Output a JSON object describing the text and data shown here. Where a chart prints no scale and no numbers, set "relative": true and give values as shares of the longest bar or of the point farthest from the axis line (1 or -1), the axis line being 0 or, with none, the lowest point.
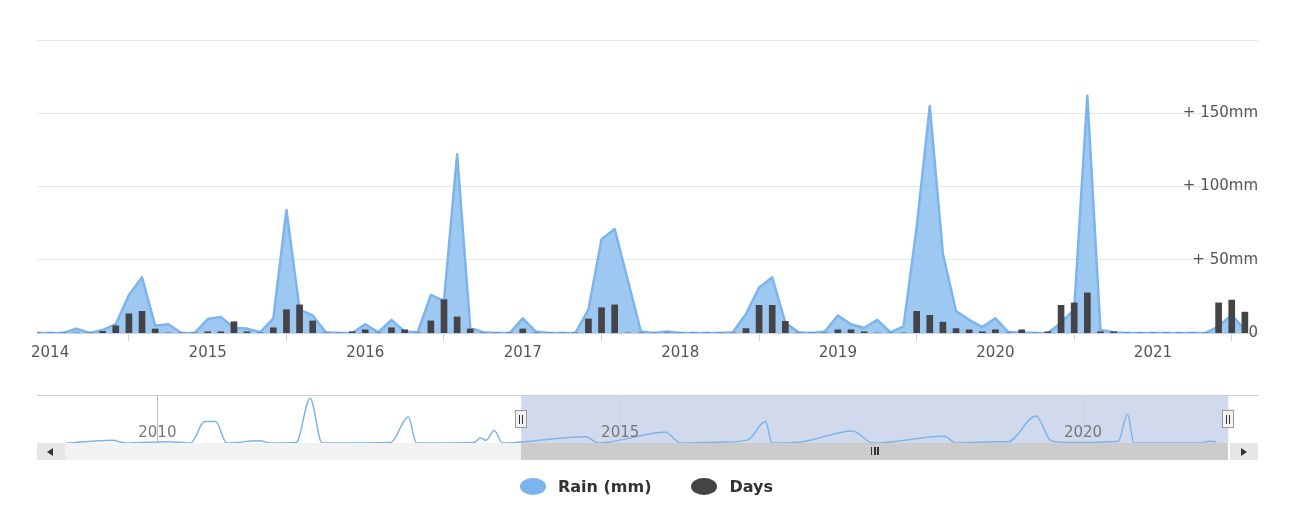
{
  "chart_data": [
    {
      "type": "area",
      "x": [
        "2013-12",
        "2014-01",
        "2014-02",
        "2014-03",
        "2014-04",
        "2014-05",
        "2014-06",
        "2014-07",
        "2014-08",
        "2014-09",
        "2014-10",
        "2014-11",
        "2014-12",
        "2015-01",
        "2015-02",
        "2015-03",
        "2015-04",
        "2015-05",
        "2015-06",
        "2015-07",
        "2015-08",
        "2015-09",
        "2015-10",
        "2015-11",
        "2015-12",
        "2016-01",
        "2016-02",
        "2016-03",
        "2016-04",
        "2016-05",
        "2016-06",
        "2016-07",
        "2016-08",
        "2016-09",
        "2016-10",
        "2016-11",
        "2016-12",
        "2017-01",
        "2017-02",
        "2017-03",
        "2017-04",
        "2017-05",
        "2017-06",
        "2017-07",
        "2017-08",
        "2017-09",
        "2017-10",
        "2017-11",
        "2017-12",
        "2018-01",
        "2018-02",
        "2018-03",
        "2018-04",
        "2018-05",
        "2018-06",
        "2018-07",
        "2018-08",
        "2018-09",
        "2018-10",
        "2018-11",
        "2018-12",
        "2019-01",
        "2019-02",
        "2019-03",
        "2019-04",
        "2019-05",
        "2019-06",
        "2019-07",
        "2019-08",
        "2019-09",
        "2019-10",
        "2019-11",
        "2019-12",
        "2020-01",
        "2020-02",
        "2020-03",
        "2020-04",
        "2020-05",
        "2020-06",
        "2020-07",
        "2020-08",
        "2020-09",
        "2020-10",
        "2020-11",
        "2020-12",
        "2021-01",
        "2021-02",
        "2021-03",
        "2021-04",
        "2021-05",
        "2021-06",
        "2021-07",
        "2021-08"
      ],
      "series": [
        {
          "name": "Rain (mm)",
          "color": "#7cb5ec",
          "values": [
            0,
            0,
            0,
            3,
            0,
            2,
            6,
            26,
            38,
            5,
            6,
            0,
            0,
            9.5,
            11,
            3.4,
            3,
            0.5,
            10,
            84,
            16,
            12,
            0.5,
            0,
            0,
            6,
            0.5,
            9,
            1,
            0.5,
            26,
            22,
            122,
            3.4,
            0.5,
            0,
            0,
            10,
            1,
            0,
            0,
            0,
            16,
            64,
            71,
            36,
            1,
            0,
            1,
            0,
            0,
            0,
            0,
            0.5,
            13,
            31,
            38,
            7,
            0.5,
            0,
            1,
            12,
            6,
            3.4,
            9,
            0.5,
            4.5,
            72,
            155,
            54,
            15,
            9,
            4,
            10,
            0.5,
            0.5,
            0,
            0,
            7,
            16,
            162,
            2,
            0.5,
            0,
            0,
            0,
            0,
            0,
            0,
            0,
            4.5,
            12.5,
            2
          ]
        }
      ],
      "xlim": [
        "2013-12",
        "2021-09"
      ],
      "xticks": [
        "2014",
        "2015",
        "2016",
        "2017",
        "2018",
        "2019",
        "2020",
        "2021"
      ],
      "ylim": [
        0,
        200
      ],
      "yticks": [
        {
          "value": 0,
          "label": "0"
        },
        {
          "value": 50,
          "label": "+ 50mm"
        },
        {
          "value": 100,
          "label": "+ 100mm"
        },
        {
          "value": 150,
          "label": "+ 150mm"
        },
        {
          "value": 200,
          "label": null
        }
      ],
      "grid": "y",
      "legend": "bottom"
    },
    {
      "type": "bar",
      "relative": true,
      "x": [
        "2013-12",
        "2014-01",
        "2014-02",
        "2014-03",
        "2014-04",
        "2014-05",
        "2014-06",
        "2014-07",
        "2014-08",
        "2014-09",
        "2014-10",
        "2014-11",
        "2014-12",
        "2015-01",
        "2015-02",
        "2015-03",
        "2015-04",
        "2015-05",
        "2015-06",
        "2015-07",
        "2015-08",
        "2015-09",
        "2015-10",
        "2015-11",
        "2015-12",
        "2016-01",
        "2016-02",
        "2016-03",
        "2016-04",
        "2016-05",
        "2016-06",
        "2016-07",
        "2016-08",
        "2016-09",
        "2016-10",
        "2016-11",
        "2016-12",
        "2017-01",
        "2017-02",
        "2017-03",
        "2017-04",
        "2017-05",
        "2017-06",
        "2017-07",
        "2017-08",
        "2017-09",
        "2017-10",
        "2017-11",
        "2017-12",
        "2018-01",
        "2018-02",
        "2018-03",
        "2018-04",
        "2018-05",
        "2018-06",
        "2018-07",
        "2018-08",
        "2018-09",
        "2018-10",
        "2018-11",
        "2018-12",
        "2019-01",
        "2019-02",
        "2019-03",
        "2019-04",
        "2019-05",
        "2019-06",
        "2019-07",
        "2019-08",
        "2019-09",
        "2019-10",
        "2019-11",
        "2019-12",
        "2020-01",
        "2020-02",
        "2020-03",
        "2020-04",
        "2020-05",
        "2020-06",
        "2020-07",
        "2020-08",
        "2020-09",
        "2020-10",
        "2020-11",
        "2020-12",
        "2021-01",
        "2021-02",
        "2021-03",
        "2021-04",
        "2021-05",
        "2021-06",
        "2021-07",
        "2021-08"
      ],
      "series": [
        {
          "name": "Days",
          "color": "#434348",
          "values": [
            0,
            0,
            0,
            0,
            0,
            0.04,
            0.18,
            0.48,
            0.54,
            0.1,
            0,
            0,
            0,
            0.03,
            0.03,
            0.28,
            0.03,
            0,
            0.13,
            0.58,
            0.7,
            0.3,
            0,
            0,
            0.03,
            0.08,
            0,
            0.13,
            0.08,
            0,
            0.3,
            0.83,
            0.4,
            0.1,
            0,
            0,
            0,
            0.1,
            0,
            0,
            0,
            0,
            0.35,
            0.63,
            0.7,
            0,
            0,
            0,
            0,
            0,
            0,
            0,
            0,
            0,
            0.11,
            0.69,
            0.69,
            0.29,
            0,
            0,
            0,
            0.08,
            0.08,
            0.03,
            0,
            0,
            0,
            0.54,
            0.44,
            0.27,
            0.11,
            0.08,
            0.03,
            0.08,
            0,
            0.08,
            0,
            0.03,
            0.69,
            0.75,
            1,
            0.03,
            0.03,
            0,
            0,
            0,
            0,
            0,
            0,
            0,
            0.75,
            0.82,
            0.52
          ]
        }
      ],
      "xlim": [
        "2013-12",
        "2021-09"
      ],
      "legend": "bottom"
    },
    {
      "type": "line",
      "relative": true,
      "x": [
        2009.02,
        2009.51,
        2009.67,
        2010.12,
        2010.36,
        2010.51,
        2010.63,
        2010.75,
        2011.11,
        2011.22,
        2011.5,
        2011.65,
        2011.78,
        2012.52,
        2012.71,
        2012.8,
        2013.42,
        2013.49,
        2013.55,
        2013.64,
        2013.73,
        2014.63,
        2014.76,
        2015.49,
        2015.65,
        2016.12,
        2016.38,
        2016.57,
        2016.64,
        2016.97,
        2017.51,
        2017.73,
        2018.5,
        2018.63,
        2019.02,
        2019.19,
        2019.49,
        2019.66,
        2019.9,
        2020.38,
        2020.48,
        2020.55,
        2021.26,
        2021.37,
        2021.44
      ],
      "series": [
        {
          "color": "#7cb5ec",
          "values": [
            0,
            0.06,
            0,
            0.03,
            0,
            0.48,
            0.48,
            0,
            0.05,
            0,
            0.01,
            1,
            0,
            0.01,
            0.58,
            0,
            0.01,
            0.11,
            0.06,
            0.28,
            0,
            0.14,
            0,
            0.24,
            0,
            0.02,
            0.07,
            0.48,
            0,
            0.03,
            0.27,
            0,
            0.15,
            0,
            0.03,
            0.03,
            0.6,
            0.04,
            0.01,
            0.04,
            0.64,
            0,
            0,
            0.04,
            0.03
          ]
        }
      ],
      "xlim": [
        2008.7,
        2021.89
      ],
      "xticks": [
        2010,
        2015,
        2020
      ],
      "grid": "x",
      "bands": [
        {
          "axis": "x",
          "from": 2013.93,
          "to": 2021.57,
          "color": "#ccd6eb"
        }
      ]
    }
  ]
}
